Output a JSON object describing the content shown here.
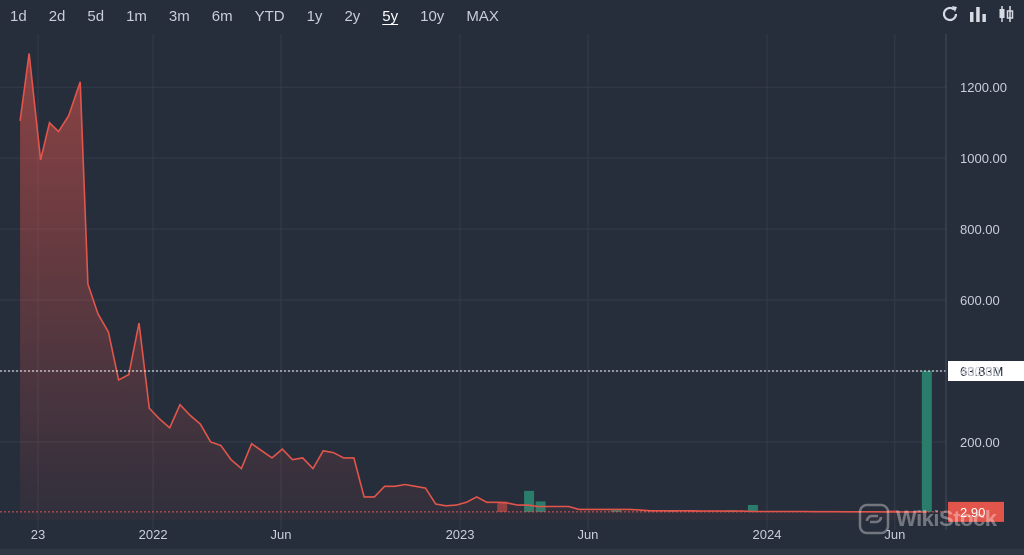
{
  "toolbar": {
    "ranges": [
      "1d",
      "2d",
      "5d",
      "1m",
      "3m",
      "6m",
      "YTD",
      "1y",
      "2y",
      "5y",
      "10y",
      "MAX"
    ],
    "active_range": "5y",
    "tools": [
      "refresh-icon",
      "bar-chart-icon",
      "candlestick-icon"
    ]
  },
  "colors": {
    "background": "#262d3b",
    "line": "#e2554b",
    "volume_up": "#2a7d6b",
    "volume_down": "#8e4141",
    "price_badge": "#e2554b",
    "grid": "#343c4c"
  },
  "chart_data": {
    "type": "area",
    "y_axis_ticks": [
      "200.00",
      "400.00",
      "600.00",
      "800.00",
      "1000.00",
      "1200.00"
    ],
    "ylim": [
      -20,
      1350
    ],
    "x_axis_ticks": [
      {
        "label": "23",
        "t": 0.7
      },
      {
        "label": "2022",
        "t": 5.2
      },
      {
        "label": "Jun",
        "t": 10.2
      },
      {
        "label": "2023",
        "t": 17.2
      },
      {
        "label": "Jun",
        "t": 22.2
      },
      {
        "label": "2024",
        "t": 29.2
      },
      {
        "label": "Jun",
        "t": 34.2
      }
    ],
    "xlim": [
      -0.2,
      36.2
    ],
    "series": [
      {
        "values": [
          [
            0.0,
            1105
          ],
          [
            0.35,
            1295
          ],
          [
            0.8,
            995
          ],
          [
            1.15,
            1100
          ],
          [
            1.5,
            1075
          ],
          [
            1.9,
            1120
          ],
          [
            2.35,
            1215
          ],
          [
            2.65,
            645
          ],
          [
            3.05,
            560
          ],
          [
            3.45,
            510
          ],
          [
            3.85,
            375
          ],
          [
            4.25,
            390
          ],
          [
            4.65,
            535
          ],
          [
            5.05,
            295
          ],
          [
            5.45,
            265
          ],
          [
            5.85,
            240
          ],
          [
            6.25,
            305
          ],
          [
            6.65,
            275
          ],
          [
            7.05,
            250
          ],
          [
            7.45,
            200
          ],
          [
            7.85,
            190
          ],
          [
            8.25,
            150
          ],
          [
            8.65,
            125
          ],
          [
            9.05,
            195
          ],
          [
            9.45,
            175
          ],
          [
            9.85,
            155
          ],
          [
            10.25,
            180
          ],
          [
            10.65,
            150
          ],
          [
            11.05,
            155
          ],
          [
            11.45,
            125
          ],
          [
            11.85,
            175
          ],
          [
            12.25,
            170
          ],
          [
            12.65,
            155
          ],
          [
            13.05,
            155
          ],
          [
            13.45,
            45
          ],
          [
            13.85,
            45
          ],
          [
            14.25,
            75
          ],
          [
            14.65,
            75
          ],
          [
            15.05,
            80
          ],
          [
            15.45,
            75
          ],
          [
            15.85,
            70
          ],
          [
            16.25,
            25
          ],
          [
            16.65,
            20
          ],
          [
            17.05,
            22
          ],
          [
            17.45,
            30
          ],
          [
            17.85,
            45
          ],
          [
            18.25,
            30
          ],
          [
            18.65,
            30
          ],
          [
            19.05,
            28
          ],
          [
            19.45,
            22
          ],
          [
            19.85,
            22
          ],
          [
            20.25,
            18
          ],
          [
            20.65,
            18
          ],
          [
            21.05,
            18
          ],
          [
            21.45,
            18
          ],
          [
            21.85,
            10
          ],
          [
            22.25,
            10
          ],
          [
            22.65,
            10
          ],
          [
            23.05,
            10
          ],
          [
            23.45,
            10
          ],
          [
            23.85,
            10
          ],
          [
            24.25,
            8
          ],
          [
            24.65,
            6
          ],
          [
            25.05,
            6
          ],
          [
            25.45,
            6
          ],
          [
            25.85,
            6
          ],
          [
            26.25,
            6
          ],
          [
            26.65,
            5
          ],
          [
            27.05,
            5
          ],
          [
            27.45,
            5
          ],
          [
            27.85,
            5
          ],
          [
            28.25,
            5
          ],
          [
            28.65,
            4
          ],
          [
            29.05,
            4
          ],
          [
            29.45,
            4
          ],
          [
            29.85,
            4
          ],
          [
            30.25,
            4
          ],
          [
            30.65,
            4
          ],
          [
            31.05,
            3.5
          ],
          [
            31.45,
            3.5
          ],
          [
            31.85,
            3.5
          ],
          [
            32.25,
            3.2
          ],
          [
            32.65,
            3.2
          ],
          [
            33.05,
            3.0
          ],
          [
            33.45,
            3.0
          ],
          [
            33.85,
            2.9
          ],
          [
            34.25,
            2.9
          ],
          [
            34.65,
            2.9
          ],
          [
            35.05,
            2.9
          ],
          [
            35.45,
            2.9
          ]
        ]
      }
    ],
    "volume": [
      {
        "t": 18.85,
        "v": 0.03,
        "dir": "down"
      },
      {
        "t": 19.9,
        "v": 0.06,
        "dir": "up"
      },
      {
        "t": 20.35,
        "v": 0.03,
        "dir": "up"
      },
      {
        "t": 23.3,
        "v": 0.005,
        "dir": "up"
      },
      {
        "t": 25.5,
        "v": 0.005,
        "dir": "up"
      },
      {
        "t": 26.4,
        "v": 0.004,
        "dir": "down"
      },
      {
        "t": 27.8,
        "v": 0.005,
        "dir": "up"
      },
      {
        "t": 28.65,
        "v": 0.02,
        "dir": "up"
      },
      {
        "t": 34.1,
        "v": 0.005,
        "dir": "down"
      },
      {
        "t": 35.45,
        "v": 0.4,
        "dir": "up"
      }
    ],
    "last_price": {
      "label": "2.90",
      "value": 2.9
    },
    "volume_marker": {
      "label": "63.83M",
      "value": 0.4
    }
  },
  "watermark": {
    "text": "WikiStock"
  }
}
